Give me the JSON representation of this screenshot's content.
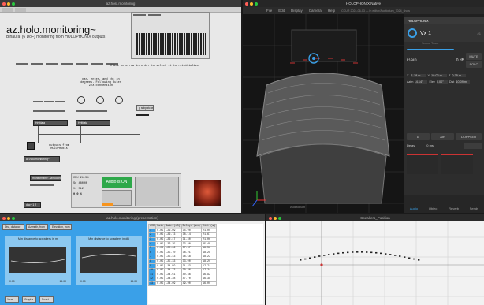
{
  "w1": {
    "title": "az.holo.monitoring",
    "heading": "az.holo.monitoring~",
    "sub": "Binaural (6 DoF) monitoring from HOLOPHONIX outputs",
    "comment1": "Click on arrow in order to select it to reinitialize",
    "note1": "pan, enter, and chi in degrees. Following Euler ZYX convention",
    "subpatch": "p subpatcher",
    "hrtf": "Hrtfdata",
    "obj_mon": "az.holo.monitoring~",
    "obj_monitor": "monitorname: azholocheck",
    "obj_out": "dac~ 1 2",
    "comment2": "outputs from HOLOPHONIX",
    "audio_on": "Audio is ON",
    "cpu": "CPU 21.5%",
    "sr": "Sr 48000",
    "vs": "Vs 512",
    "gain": "0.0 %",
    "meters_label": "HOLOPHONIX"
  },
  "w2": {
    "title": "HOLOPHONIX Native",
    "menus": [
      "File",
      "Edit",
      "Display",
      "Camera",
      "Help"
    ],
    "status": "CCUR 2024-06-03 — In editor/Auditorium_7024_show",
    "source": "Vx 1",
    "source_sub": "Sound Track",
    "source_id": "#1",
    "gain_label": "Gain",
    "gain_val": "0 dB",
    "mute": "MUTE",
    "solo": "SOLO",
    "x_label": "X",
    "x_val": "-1.18 m",
    "y_label": "Y",
    "y_val": "10.02 m",
    "z_label": "Z",
    "z_val": "0.35 m",
    "az_label": "Azim",
    "az_val": "-4.14°",
    "el_label": "Elev",
    "el_val": "0.00°",
    "dist_label": "Dist",
    "dist_val": "10.09 m",
    "btns": [
      "Ø",
      "AIR",
      "DOPPLER"
    ],
    "delay_label": "Delay",
    "delay_val": "0 ms",
    "tabs": [
      "Audio",
      "Object",
      "Reverb",
      "Sends"
    ],
    "overlay": "HOLOPHONIX",
    "scene_label": "Auditorium"
  },
  "w3": {
    "title": "az.holo.monitoring (presentation)",
    "tab_labels": [
      "Dist, distance",
      "Azimuth, from",
      "Elevation, from"
    ],
    "g1_title": "Min distance to speakers in m",
    "g2_title": "Min distance to speakers in dB",
    "g_min": "0.00",
    "g_max": "15.00",
    "btns": [
      "View",
      "Graphs",
      "Reset"
    ],
    "table_headers": [
      "#ID",
      "Gain",
      "Gain (dB)",
      "Delays (ms)",
      "Dist (m)"
    ],
    "table_rows": [
      [
        "1",
        "0.05",
        "-26.69",
        "34.90",
        "21.00"
      ],
      [
        "2",
        "0.05",
        "-26.73",
        "38.14",
        "21.67"
      ],
      [
        "3",
        "0.05",
        "-26.47",
        "31.40",
        "21.06"
      ],
      [
        "4",
        "0.05",
        "-26.35",
        "33.80",
        "25.45"
      ],
      [
        "5",
        "0.05",
        "-25.66",
        "37.67",
        "18.58"
      ],
      [
        "6",
        "0.05",
        "-25.70",
        "38.21",
        "18.28"
      ],
      [
        "7",
        "0.05",
        "-25.43",
        "38.58",
        "18.22"
      ],
      [
        "8",
        "0.05",
        "-25.33",
        "33.00",
        "18.20"
      ],
      [
        "9",
        "0.05",
        "-24.59",
        "31.43",
        "17.71"
      ],
      [
        "10",
        "0.05",
        "-24.73",
        "30.26",
        "17.24"
      ],
      [
        "11",
        "0.05",
        "-24.51",
        "40.36",
        "16.92"
      ],
      [
        "12",
        "0.05",
        "-24.28",
        "47.70",
        "16.38"
      ],
      [
        "13",
        "0.05",
        "-24.69",
        "49.90",
        "16.00"
      ]
    ]
  },
  "w4": {
    "title": "Speakers_Position"
  }
}
